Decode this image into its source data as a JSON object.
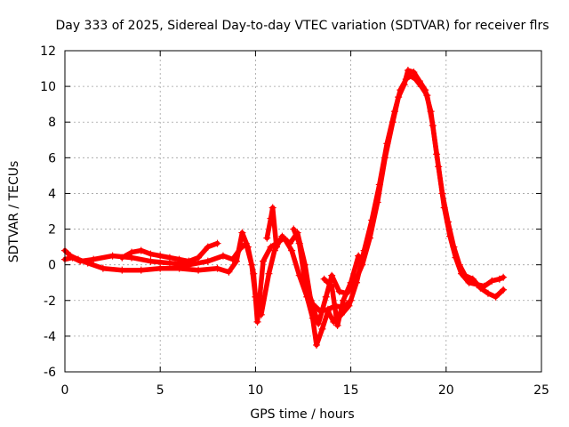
{
  "chart_data": {
    "type": "scatter",
    "title": "Day 333 of 2025, Sidereal Day-to-day VTEC variation (SDTVAR) for receiver flrs",
    "xlabel": "GPS time / hours",
    "ylabel": "SDTVAR / TECUs",
    "xlim": [
      0,
      25
    ],
    "ylim": [
      -6,
      12
    ],
    "x_ticks": [
      "0",
      "5",
      "10",
      "15",
      "20",
      "25"
    ],
    "y_ticks": [
      "-6",
      "-4",
      "-2",
      "0",
      "2",
      "4",
      "6",
      "8",
      "10",
      "12"
    ],
    "grid": true,
    "marker": "plus",
    "series": [
      {
        "name": "SDTVAR",
        "color": "#ff0000",
        "traces": [
          {
            "x": [
              0,
              0.3,
              0.7,
              1.2,
              2.0,
              3.0,
              4.0,
              5.0,
              6.0,
              7.0,
              8.0,
              8.6,
              9.0,
              9.3,
              9.6,
              9.9,
              10.1,
              10.4,
              10.8,
              11.1,
              11.5,
              11.9,
              12.3,
              12.7,
              13.0,
              13.2,
              13.5,
              13.8,
              14.1,
              14.5,
              14.9,
              15.3,
              15.7,
              16.1,
              16.5,
              16.9,
              17.3,
              17.6,
              17.9,
              18.1,
              18.4,
              18.7,
              19.0,
              19.3,
              19.6,
              19.9,
              20.2,
              20.5,
              20.8,
              21.2,
              21.6,
              22.0,
              22.4,
              22.8,
              23.0
            ],
            "y": [
              0.8,
              0.5,
              0.3,
              0.1,
              -0.2,
              -0.3,
              -0.3,
              -0.2,
              -0.2,
              -0.3,
              -0.2,
              -0.4,
              0.2,
              1.8,
              1.0,
              -0.5,
              -3.2,
              0.2,
              1.0,
              1.2,
              1.5,
              0.8,
              -0.6,
              -1.8,
              -3.0,
              -4.5,
              -3.6,
              -2.6,
              -3.2,
              -2.8,
              -2.3,
              -1.0,
              0.8,
              2.5,
              4.5,
              6.8,
              8.6,
              9.8,
              10.4,
              10.6,
              10.4,
              10.0,
              9.5,
              7.8,
              5.5,
              3.2,
              1.6,
              0.4,
              -0.5,
              -1.0,
              -1.1,
              -1.2,
              -0.9,
              -0.8,
              -0.7
            ]
          },
          {
            "x": [
              0,
              0.4,
              0.8,
              1.5,
              2.5,
              3.5,
              4.5,
              5.5,
              6.5,
              7.5,
              8.3,
              8.8,
              9.2,
              9.5,
              9.8,
              10.0,
              10.3,
              10.7,
              11.0,
              11.4,
              11.8,
              12.2,
              12.6,
              12.9,
              13.3,
              13.7,
              14.0,
              14.4,
              14.8,
              15.2,
              15.6,
              16.0,
              16.4,
              16.8,
              17.2,
              17.5,
              17.8,
              18.0,
              18.3,
              18.6,
              18.9,
              19.2,
              19.5,
              19.8,
              20.1,
              20.4,
              20.7,
              21.0,
              21.4,
              21.8,
              22.2,
              22.6,
              23.0
            ],
            "y": [
              0.3,
              0.4,
              0.2,
              0.3,
              0.5,
              0.4,
              0.2,
              0.1,
              0.0,
              0.2,
              0.5,
              0.3,
              0.9,
              1.2,
              0.0,
              -1.8,
              -2.8,
              -0.5,
              0.8,
              1.6,
              1.2,
              1.8,
              0.0,
              -2.0,
              -3.3,
              -1.8,
              -0.6,
              -1.5,
              -1.6,
              -1.0,
              0.0,
              1.5,
              3.5,
              6.0,
              8.0,
              9.4,
              10.1,
              10.9,
              10.8,
              10.3,
              9.8,
              8.6,
              6.2,
              4.0,
              2.4,
              1.0,
              0.0,
              -0.6,
              -0.8,
              -1.3,
              -1.6,
              -1.8,
              -1.4
            ]
          },
          {
            "x": [
              3.0,
              3.5,
              4.0,
              4.5,
              5.0,
              5.5,
              6.0,
              6.5,
              7.0,
              7.5,
              8.0
            ],
            "y": [
              0.4,
              0.7,
              0.8,
              0.6,
              0.5,
              0.4,
              0.3,
              0.2,
              0.4,
              1.0,
              1.2
            ]
          },
          {
            "x": [
              10.6,
              10.8,
              10.9,
              11.1
            ],
            "y": [
              1.5,
              2.6,
              3.2,
              1.0
            ]
          },
          {
            "x": [
              12.0,
              12.3,
              12.6,
              13.0,
              13.4,
              13.8,
              14.2,
              14.6,
              15.0
            ],
            "y": [
              2.0,
              1.2,
              -1.0,
              -2.2,
              -2.6,
              -2.5,
              -2.3,
              -2.4,
              -2.0
            ]
          },
          {
            "x": [
              13.6,
              14.0,
              14.3,
              14.6,
              15.0,
              15.4
            ],
            "y": [
              -0.8,
              -1.2,
              -3.4,
              -2.0,
              -1.0,
              0.5
            ]
          }
        ]
      }
    ]
  }
}
